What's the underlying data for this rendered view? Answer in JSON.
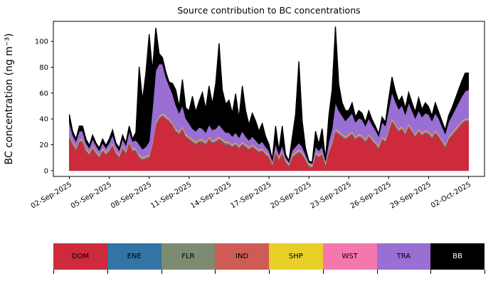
{
  "chart_data": {
    "type": "area",
    "stacked": true,
    "title": "Source contribution to BC concentrations",
    "ylabel": "BC concentration (ng m⁻³)",
    "x_start": "02-Sep-2025",
    "x_end": "02-Oct-2025",
    "points_per_day": 4,
    "days_span": 30,
    "ylim": [
      -4.5,
      115.5
    ],
    "xlim_days": [
      -1.2,
      31.2
    ],
    "yticks": [
      0,
      20,
      40,
      60,
      80,
      100
    ],
    "xtick_days": [
      0,
      3,
      6,
      9,
      12,
      15,
      18,
      21,
      24,
      27,
      30
    ],
    "xtick_labels": [
      "02-Sep-2025",
      "05-Sep-2025",
      "08-Sep-2025",
      "11-Sep-2025",
      "14-Sep-2025",
      "17-Sep-2025",
      "20-Sep-2025",
      "23-Sep-2025",
      "26-Sep-2025",
      "29-Sep-2025",
      "02-Oct-2025"
    ],
    "legend_position": "bottom",
    "grid": false,
    "series": [
      {
        "name": "DOM",
        "color": "#cd2a3b",
        "values": [
          26,
          20,
          16,
          22,
          22,
          15,
          12,
          17,
          13,
          10,
          15,
          12,
          15,
          19,
          13,
          10,
          17,
          13,
          21,
          15,
          15,
          10,
          8,
          9,
          10,
          20,
          35,
          40,
          42,
          40,
          38,
          35,
          30,
          28,
          32,
          26,
          24,
          22,
          20,
          22,
          22,
          20,
          24,
          21,
          22,
          24,
          22,
          20,
          20,
          18,
          20,
          17,
          20,
          18,
          16,
          18,
          16,
          14,
          15,
          12,
          10,
          4,
          14,
          8,
          13,
          6,
          3,
          10,
          12,
          14,
          12,
          8,
          3,
          2,
          12,
          10,
          12,
          4,
          14,
          20,
          30,
          28,
          26,
          24,
          26,
          28,
          24,
          26,
          25,
          22,
          26,
          23,
          20,
          17,
          24,
          22,
          30,
          38,
          34,
          30,
          32,
          28,
          34,
          30,
          26,
          30,
          27,
          29,
          28,
          25,
          29,
          26,
          22,
          18,
          24,
          27,
          30,
          33,
          36,
          38,
          38
        ]
      },
      {
        "name": "ENE",
        "color": "#3274a3",
        "value": 0.6
      },
      {
        "name": "FLR",
        "color": "#7d8b72",
        "value": 0.4
      },
      {
        "name": "IND",
        "color": "#cd5c55",
        "value": 0.6
      },
      {
        "name": "SHP",
        "color": "#e8cf28",
        "value": 0.5
      },
      {
        "name": "WST",
        "color": "#f478ad",
        "value": 0.4
      },
      {
        "name": "TRA",
        "color": "#9a6fd4",
        "values": [
          9,
          5,
          4,
          6,
          6,
          4,
          3,
          5,
          4,
          3,
          4,
          3,
          4,
          6,
          4,
          3,
          5,
          4,
          7,
          5,
          6,
          8,
          6,
          7,
          10,
          25,
          40,
          40,
          38,
          30,
          25,
          22,
          18,
          14,
          16,
          12,
          10,
          8,
          8,
          9,
          8,
          7,
          9,
          8,
          8,
          9,
          8,
          7,
          7,
          6,
          7,
          6,
          8,
          6,
          5,
          6,
          5,
          4,
          5,
          4,
          3,
          1,
          4,
          2,
          4,
          2,
          1,
          3,
          4,
          5,
          4,
          2,
          1,
          1,
          4,
          3,
          4,
          1,
          6,
          10,
          20,
          16,
          14,
          12,
          13,
          14,
          11,
          12,
          12,
          10,
          12,
          10,
          9,
          7,
          11,
          10,
          15,
          20,
          17,
          15,
          16,
          13,
          16,
          14,
          12,
          14,
          12,
          13,
          13,
          11,
          13,
          12,
          10,
          8,
          11,
          13,
          15,
          17,
          19,
          21,
          22
        ]
      },
      {
        "name": "BB",
        "color": "#000000",
        "values": [
          6,
          3,
          2,
          4,
          4,
          3,
          2,
          3,
          2,
          2,
          3,
          2,
          3,
          4,
          2,
          2,
          3,
          2,
          4,
          2,
          6,
          60,
          38,
          57,
          83,
          30,
          33,
          8,
          5,
          4,
          3,
          8,
          12,
          5,
          20,
          8,
          10,
          25,
          15,
          20,
          28,
          18,
          30,
          20,
          35,
          63,
          30,
          22,
          25,
          18,
          30,
          15,
          35,
          20,
          12,
          18,
          15,
          10,
          14,
          8,
          5,
          1,
          14,
          3,
          15,
          2,
          1,
          10,
          25,
          63,
          20,
          5,
          1,
          1,
          12,
          5,
          14,
          1,
          20,
          30,
          59,
          20,
          10,
          8,
          5,
          8,
          4,
          6,
          5,
          3,
          6,
          4,
          3,
          2,
          4,
          3,
          8,
          12,
          8,
          6,
          7,
          5,
          8,
          6,
          5,
          10,
          6,
          8,
          6,
          4,
          8,
          5,
          4,
          3,
          5,
          6,
          8,
          10,
          12,
          14,
          13
        ]
      }
    ]
  }
}
